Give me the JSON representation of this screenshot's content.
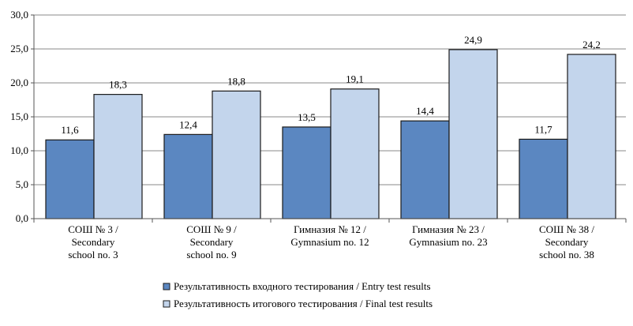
{
  "chart_data": {
    "type": "bar",
    "categories": [
      [
        "СОШ № 3 /",
        "Secondary",
        "school no. 3"
      ],
      [
        "СОШ № 9 /",
        "Secondary",
        "school no. 9"
      ],
      [
        "Гимназия № 12 /",
        "Gymnasium no. 12"
      ],
      [
        "Гимназия № 23 /",
        "Gymnasium no. 23"
      ],
      [
        "СОШ № 38 /",
        "Secondary",
        "school  no. 38"
      ]
    ],
    "series": [
      {
        "name": "Результативность входного тестирования / Entry test results",
        "values": [
          11.6,
          12.4,
          13.5,
          14.4,
          11.7
        ],
        "labels": [
          "11,6",
          "12,4",
          "13,5",
          "14,4",
          "11,7"
        ],
        "color": "#5b87c1"
      },
      {
        "name": "Результативность итогового тестирования / Final test results",
        "values": [
          18.3,
          18.8,
          19.1,
          24.9,
          24.2
        ],
        "labels": [
          "18,3",
          "18,8",
          "19,1",
          "24,9",
          "24,2"
        ],
        "color": "#c3d5ec"
      }
    ],
    "ylim": [
      0,
      30
    ],
    "yticks": [
      "0,0",
      "5,0",
      "10,0",
      "15,0",
      "20,0",
      "25,0",
      "30,0"
    ],
    "title": "",
    "xlabel": "",
    "ylabel": "",
    "grid": "horizontal",
    "legend_position": "bottom"
  }
}
